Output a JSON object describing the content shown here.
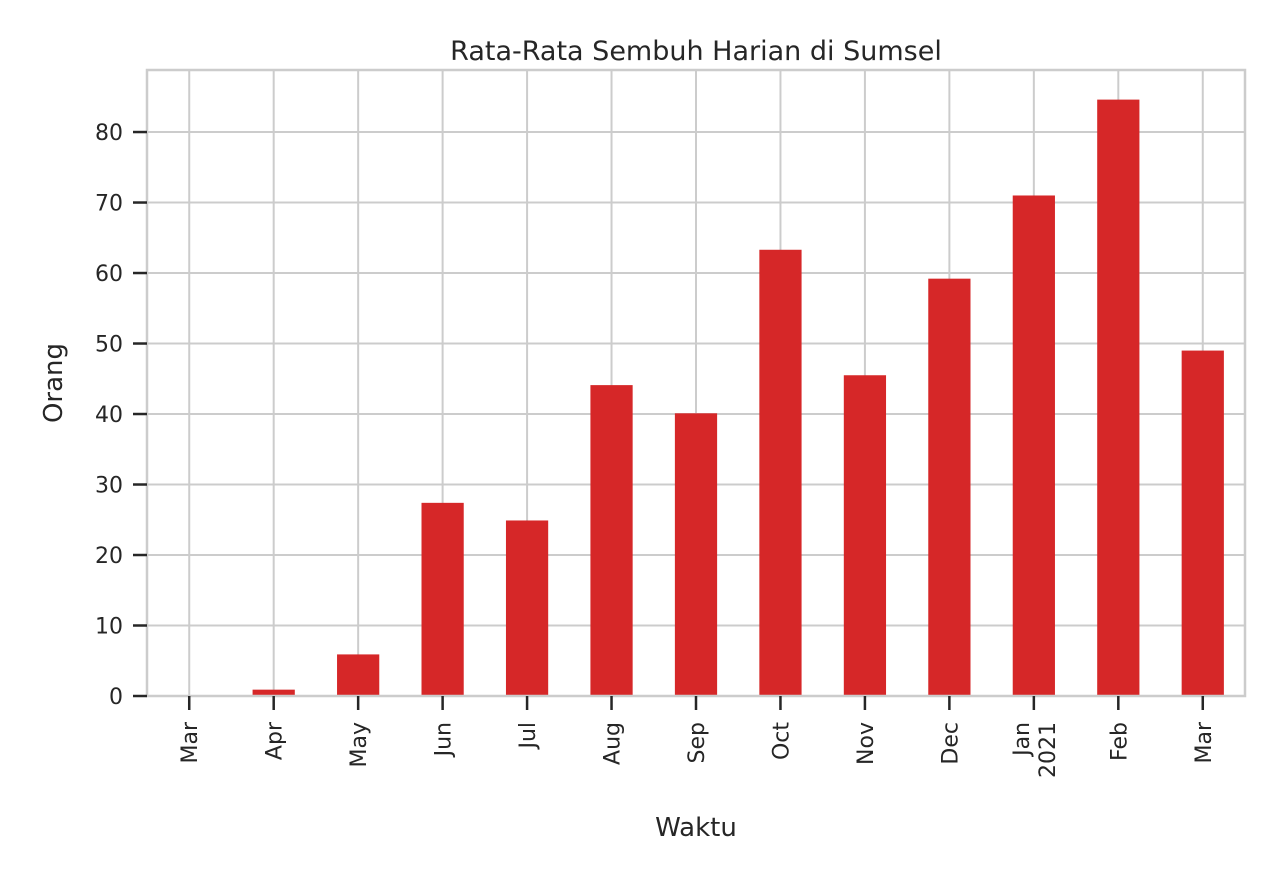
{
  "chart_data": {
    "type": "bar",
    "title": "Rata-Rata Sembuh Harian di Sumsel",
    "xlabel": "Waktu",
    "ylabel": "Orang",
    "categories": [
      "Mar",
      "Apr",
      "May",
      "Jun",
      "Jul",
      "Aug",
      "Sep",
      "Oct",
      "Nov",
      "Dec",
      "Jan\n2021",
      "Feb",
      "Mar"
    ],
    "values": [
      0,
      0.9,
      5.9,
      27.4,
      24.9,
      44.1,
      40.1,
      63.3,
      45.5,
      59.2,
      71.0,
      84.6,
      49.0
    ],
    "ylim": [
      0,
      88.8
    ],
    "yticks": [
      0,
      10,
      20,
      30,
      40,
      50,
      60,
      70,
      80
    ],
    "grid": true,
    "bar_color": "#d62728"
  }
}
